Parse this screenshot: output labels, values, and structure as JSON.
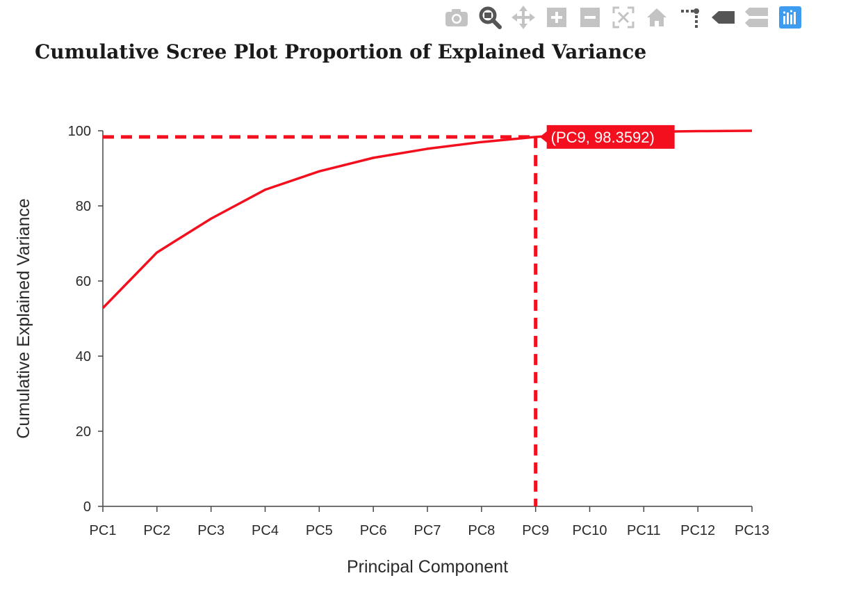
{
  "toolbar": {
    "buttons": [
      {
        "name": "camera-icon",
        "title": "Download plot as png"
      },
      {
        "name": "zoom-icon",
        "title": "Zoom"
      },
      {
        "name": "pan-icon",
        "title": "Pan"
      },
      {
        "name": "zoom-in-icon",
        "title": "Zoom in"
      },
      {
        "name": "zoom-out-icon",
        "title": "Zoom out"
      },
      {
        "name": "autoscale-icon",
        "title": "Autoscale"
      },
      {
        "name": "home-icon",
        "title": "Reset axes"
      },
      {
        "name": "spike-lines-icon",
        "title": "Toggle Spike Lines"
      },
      {
        "name": "hover-closest-icon",
        "title": "Show closest data on hover"
      },
      {
        "name": "hover-compare-icon",
        "title": "Compare data on hover"
      },
      {
        "name": "plotly-logo-icon",
        "title": "Produced with Plotly"
      }
    ]
  },
  "chart_data": {
    "type": "line",
    "title": "Cumulative Scree Plot Proportion of Explained Variance",
    "xlabel": "Principal Component",
    "ylabel": "Cumulative Explained Variance",
    "categories": [
      "PC1",
      "PC2",
      "PC3",
      "PC4",
      "PC5",
      "PC6",
      "PC7",
      "PC8",
      "PC9",
      "PC10",
      "PC11",
      "PC12",
      "PC13"
    ],
    "series": [
      {
        "name": "Cumulative Explained Variance",
        "color": "#f40f1e",
        "values": [
          52.8,
          67.6,
          76.6,
          84.3,
          89.2,
          92.8,
          95.2,
          97.0,
          98.3592,
          99.3,
          99.7,
          99.9,
          100.0
        ]
      }
    ],
    "ylim": [
      0,
      100
    ],
    "yticks": [
      0,
      20,
      40,
      60,
      80,
      100
    ],
    "hover": {
      "category": "PC9",
      "value": 98.3592,
      "label": "(PC9, 98.3592)"
    },
    "colors": {
      "line": "#f40f1e",
      "axis": "#444444",
      "text": "#2a2a2a"
    }
  }
}
